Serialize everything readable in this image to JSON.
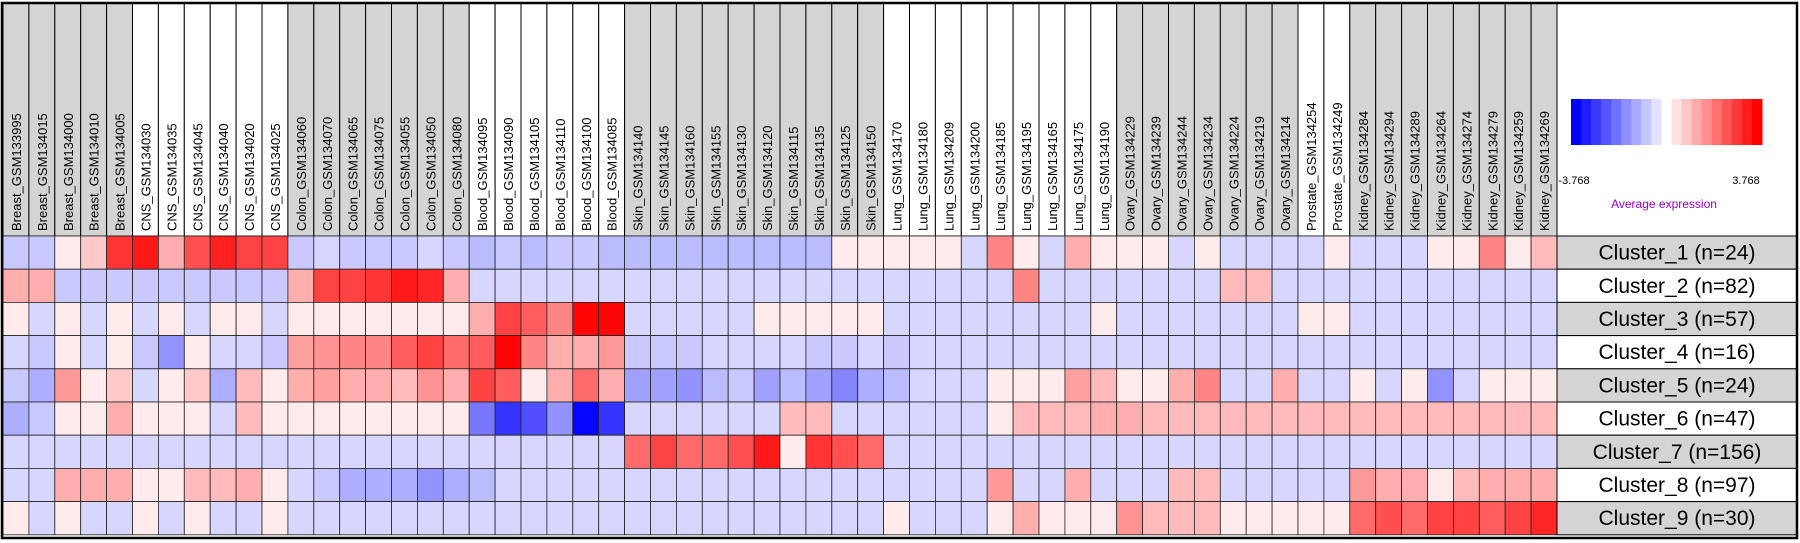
{
  "chart_data": {
    "type": "heatmap",
    "columns": [
      {
        "label": "Breast_GSM133995",
        "group": "Breast"
      },
      {
        "label": "Breast_GSM134015",
        "group": "Breast"
      },
      {
        "label": "Breast_GSM134000",
        "group": "Breast"
      },
      {
        "label": "Breast_GSM134010",
        "group": "Breast"
      },
      {
        "label": "Breast_GSM134005",
        "group": "Breast"
      },
      {
        "label": "CNS_GSM134030",
        "group": "CNS"
      },
      {
        "label": "CNS_GSM134035",
        "group": "CNS"
      },
      {
        "label": "CNS_GSM134045",
        "group": "CNS"
      },
      {
        "label": "CNS_GSM134040",
        "group": "CNS"
      },
      {
        "label": "CNS_GSM134020",
        "group": "CNS"
      },
      {
        "label": "CNS_GSM134025",
        "group": "CNS"
      },
      {
        "label": "Colon_GSM134060",
        "group": "Colon"
      },
      {
        "label": "Colon_GSM134070",
        "group": "Colon"
      },
      {
        "label": "Colon_GSM134065",
        "group": "Colon"
      },
      {
        "label": "Colon_GSM134075",
        "group": "Colon"
      },
      {
        "label": "Colon_GSM134055",
        "group": "Colon"
      },
      {
        "label": "Colon_GSM134050",
        "group": "Colon"
      },
      {
        "label": "Colon_GSM134080",
        "group": "Colon"
      },
      {
        "label": "Blood_GSM134095",
        "group": "Blood"
      },
      {
        "label": "Blood_GSM134090",
        "group": "Blood"
      },
      {
        "label": "Blood_GSM134105",
        "group": "Blood"
      },
      {
        "label": "Blood_GSM134110",
        "group": "Blood"
      },
      {
        "label": "Blood_GSM134100",
        "group": "Blood"
      },
      {
        "label": "Blood_GSM134085",
        "group": "Blood"
      },
      {
        "label": "Skin_GSM134140",
        "group": "Skin"
      },
      {
        "label": "Skin_GSM134145",
        "group": "Skin"
      },
      {
        "label": "Skin_GSM134160",
        "group": "Skin"
      },
      {
        "label": "Skin_GSM134155",
        "group": "Skin"
      },
      {
        "label": "Skin_GSM134130",
        "group": "Skin"
      },
      {
        "label": "Skin_GSM134120",
        "group": "Skin"
      },
      {
        "label": "Skin_GSM134115",
        "group": "Skin"
      },
      {
        "label": "Skin_GSM134135",
        "group": "Skin"
      },
      {
        "label": "Skin_GSM134125",
        "group": "Skin"
      },
      {
        "label": "Skin_GSM134150",
        "group": "Skin"
      },
      {
        "label": "Lung_GSM134170",
        "group": "Lung"
      },
      {
        "label": "Lung_GSM134180",
        "group": "Lung"
      },
      {
        "label": "Lung_GSM134209",
        "group": "Lung"
      },
      {
        "label": "Lung_GSM134200",
        "group": "Lung"
      },
      {
        "label": "Lung_GSM134185",
        "group": "Lung"
      },
      {
        "label": "Lung_GSM134195",
        "group": "Lung"
      },
      {
        "label": "Lung_GSM134165",
        "group": "Lung"
      },
      {
        "label": "Lung_GSM134175",
        "group": "Lung"
      },
      {
        "label": "Lung_GSM134190",
        "group": "Lung"
      },
      {
        "label": "Ovary_GSM134229",
        "group": "Ovary"
      },
      {
        "label": "Ovary_GSM134239",
        "group": "Ovary"
      },
      {
        "label": "Ovary_GSM134244",
        "group": "Ovary"
      },
      {
        "label": "Ovary_GSM134234",
        "group": "Ovary"
      },
      {
        "label": "Ovary_GSM134224",
        "group": "Ovary"
      },
      {
        "label": "Ovary_GSM134219",
        "group": "Ovary"
      },
      {
        "label": "Ovary_GSM134214",
        "group": "Ovary"
      },
      {
        "label": "Prostate_GSM134254",
        "group": "Prostate"
      },
      {
        "label": "Prostate_GSM134249",
        "group": "Prostate"
      },
      {
        "label": "Kidney_GSM134284",
        "group": "Kidney"
      },
      {
        "label": "Kidney_GSM134294",
        "group": "Kidney"
      },
      {
        "label": "Kidney_GSM134289",
        "group": "Kidney"
      },
      {
        "label": "Kidney_GSM134264",
        "group": "Kidney"
      },
      {
        "label": "Kidney_GSM134274",
        "group": "Kidney"
      },
      {
        "label": "Kidney_GSM134279",
        "group": "Kidney"
      },
      {
        "label": "Kidney_GSM134259",
        "group": "Kidney"
      },
      {
        "label": "Kidney_GSM134269",
        "group": "Kidney"
      }
    ],
    "rows": [
      "Cluster_1 (n=24)",
      "Cluster_2 (n=82)",
      "Cluster_3 (n=57)",
      "Cluster_4 (n=16)",
      "Cluster_5 (n=24)",
      "Cluster_6 (n=47)",
      "Cluster_7 (n=156)",
      "Cluster_8 (n=97)",
      "Cluster_9 (n=30)"
    ],
    "values": [
      [
        -0.8,
        -0.8,
        0.3,
        0.8,
        3.0,
        3.4,
        1.2,
        2.6,
        3.3,
        2.8,
        2.8,
        -0.8,
        -0.6,
        -0.8,
        -0.8,
        -0.8,
        -0.6,
        -0.8,
        -1.0,
        -0.8,
        -1.0,
        -0.8,
        -0.8,
        -1.0,
        -1.0,
        -1.0,
        -1.0,
        -1.0,
        -1.0,
        -1.0,
        -1.0,
        -1.0,
        0.3,
        0.3,
        0.3,
        0.3,
        0.3,
        -0.6,
        1.8,
        0.3,
        -0.6,
        1.2,
        0.3,
        0.3,
        0.3,
        -0.6,
        0.3,
        -0.6,
        -0.6,
        -0.6,
        -0.6,
        0.3,
        -0.6,
        -0.6,
        -0.6,
        0.3,
        0.3,
        1.8,
        0.3,
        1.0
      ],
      [
        1.2,
        1.2,
        -0.8,
        -0.8,
        -0.8,
        -0.8,
        -0.8,
        -0.8,
        -0.8,
        -0.8,
        -0.8,
        1.2,
        2.8,
        2.8,
        3.0,
        3.4,
        3.2,
        1.2,
        -0.6,
        -0.6,
        -0.6,
        -0.6,
        -0.6,
        -0.6,
        -0.6,
        -0.6,
        -0.6,
        -0.6,
        -0.6,
        -0.6,
        -0.6,
        -0.6,
        -0.6,
        -0.6,
        -0.6,
        -0.6,
        -0.6,
        -0.6,
        -0.6,
        1.8,
        -0.6,
        -0.6,
        -0.6,
        -0.6,
        -0.6,
        -0.6,
        -0.6,
        1.0,
        1.0,
        -0.6,
        -0.6,
        -0.6,
        -0.6,
        -0.6,
        -0.6,
        -0.6,
        -0.6,
        -0.6,
        -0.6,
        -0.6
      ],
      [
        0.3,
        -0.6,
        0.3,
        -0.6,
        0.3,
        -0.6,
        0.3,
        -0.6,
        0.3,
        0.3,
        -0.6,
        0.3,
        0.3,
        0.3,
        0.3,
        0.3,
        0.3,
        0.3,
        1.2,
        2.8,
        2.4,
        1.8,
        3.7,
        3.7,
        -0.6,
        -0.6,
        -0.6,
        -0.6,
        -0.6,
        0.3,
        0.3,
        0.3,
        0.3,
        0.3,
        -0.6,
        -0.6,
        -0.6,
        -0.6,
        -0.6,
        -0.6,
        -0.6,
        -0.6,
        0.3,
        -0.6,
        -0.6,
        -0.6,
        -0.6,
        -0.6,
        -0.6,
        -0.6,
        0.3,
        0.3,
        -0.6,
        -0.6,
        -0.6,
        -0.6,
        -0.6,
        -0.6,
        -0.6,
        -0.6
      ],
      [
        -0.6,
        -0.8,
        0.3,
        -0.6,
        0.3,
        -0.8,
        -1.6,
        0.3,
        -0.6,
        -0.6,
        -0.8,
        1.4,
        1.6,
        1.8,
        1.8,
        2.4,
        2.8,
        2.2,
        2.4,
        3.7,
        1.8,
        1.2,
        1.2,
        1.5,
        -0.8,
        -0.8,
        -0.8,
        -0.6,
        -0.6,
        -0.6,
        -0.6,
        -0.8,
        -0.8,
        -0.6,
        -0.8,
        -0.6,
        -0.6,
        -0.6,
        -0.6,
        -0.6,
        -0.6,
        -0.6,
        -0.6,
        -0.6,
        -0.6,
        -0.6,
        -0.6,
        -0.6,
        -0.6,
        -0.6,
        -0.6,
        -0.6,
        -0.6,
        -0.6,
        -0.6,
        -0.6,
        -0.6,
        -0.6,
        -0.6,
        -0.6
      ],
      [
        -0.8,
        -1.2,
        1.5,
        0.3,
        0.8,
        -0.6,
        0.3,
        0.8,
        -1.2,
        1.0,
        0.3,
        1.2,
        1.4,
        1.2,
        1.2,
        1.0,
        1.6,
        1.2,
        2.8,
        2.4,
        0.3,
        1.2,
        2.2,
        1.2,
        -1.4,
        -1.4,
        -1.6,
        -1.0,
        -0.8,
        -1.4,
        -1.0,
        -1.4,
        -1.8,
        -1.2,
        -1.0,
        -0.6,
        -0.6,
        -0.6,
        0.3,
        0.3,
        0.3,
        1.4,
        1.0,
        0.3,
        0.3,
        1.2,
        1.8,
        -0.6,
        -0.6,
        1.2,
        -0.6,
        -0.6,
        0.3,
        -0.6,
        0.3,
        -1.6,
        -0.6,
        0.3,
        0.3,
        0.3
      ],
      [
        -1.2,
        -0.8,
        0.3,
        0.3,
        1.2,
        0.3,
        0.3,
        0.3,
        -0.6,
        1.0,
        0.3,
        0.3,
        0.3,
        0.3,
        0.3,
        0.3,
        0.3,
        0.3,
        -2.0,
        -3.0,
        -2.6,
        -1.6,
        -3.7,
        -3.0,
        -0.6,
        -0.6,
        -0.6,
        -0.6,
        -0.6,
        -0.6,
        1.0,
        1.0,
        -0.6,
        -0.6,
        -0.6,
        -0.6,
        -0.6,
        -0.6,
        0.3,
        1.0,
        1.0,
        1.0,
        1.2,
        1.2,
        1.0,
        1.0,
        1.0,
        1.0,
        1.0,
        1.0,
        1.0,
        1.0,
        1.0,
        1.0,
        1.0,
        1.0,
        1.0,
        1.0,
        1.0,
        1.0
      ],
      [
        -0.6,
        -0.6,
        -0.6,
        -0.6,
        -0.6,
        -0.6,
        -0.6,
        -0.6,
        -0.6,
        -0.6,
        -0.6,
        -0.6,
        -0.6,
        -0.6,
        -0.6,
        -0.6,
        -0.6,
        -0.6,
        -0.6,
        -0.6,
        -0.6,
        -0.6,
        -0.6,
        -0.6,
        2.2,
        2.8,
        2.2,
        2.2,
        2.6,
        3.4,
        0.3,
        3.0,
        2.6,
        2.2,
        -0.6,
        -0.6,
        -0.6,
        -0.6,
        -0.6,
        -0.6,
        -0.6,
        -0.6,
        -0.6,
        -0.6,
        -0.6,
        -0.6,
        -0.6,
        -0.6,
        -0.6,
        -0.6,
        -0.6,
        -0.6,
        -0.6,
        -0.6,
        -0.6,
        -0.6,
        -0.6,
        -0.6,
        -0.6,
        -0.6
      ],
      [
        -0.6,
        -0.6,
        1.2,
        1.2,
        1.2,
        0.3,
        0.3,
        1.0,
        1.0,
        1.2,
        0.3,
        -0.6,
        -0.8,
        -1.2,
        -1.2,
        -1.2,
        -1.6,
        -1.2,
        -1.0,
        -0.6,
        -0.6,
        -0.6,
        -0.6,
        -0.6,
        -0.6,
        -0.6,
        -0.6,
        -0.6,
        -0.6,
        -0.6,
        -0.6,
        -0.6,
        -0.6,
        -0.6,
        -0.6,
        -0.6,
        -0.6,
        -0.6,
        1.5,
        -0.6,
        -0.6,
        1.2,
        -0.6,
        -0.6,
        -0.6,
        1.0,
        1.0,
        -0.6,
        -0.6,
        -0.6,
        -0.6,
        -0.6,
        1.5,
        1.2,
        1.2,
        0.3,
        1.0,
        1.2,
        1.2,
        1.2
      ],
      [
        0.3,
        -0.6,
        0.3,
        -0.6,
        -0.6,
        0.3,
        -0.6,
        0.3,
        -0.6,
        -0.6,
        0.3,
        -0.6,
        -0.6,
        -0.6,
        -0.6,
        -0.6,
        -0.6,
        -0.6,
        -0.6,
        -0.6,
        -0.6,
        -0.6,
        -0.6,
        -0.6,
        -0.6,
        -0.6,
        -0.6,
        -0.6,
        -0.6,
        -0.6,
        -0.6,
        -0.6,
        -0.6,
        -0.6,
        0.3,
        -0.6,
        -0.6,
        -0.6,
        0.3,
        1.2,
        0.3,
        0.3,
        0.3,
        1.6,
        1.0,
        1.0,
        1.0,
        0.3,
        0.3,
        0.3,
        0.3,
        0.3,
        2.2,
        2.6,
        2.2,
        2.8,
        2.8,
        2.4,
        2.8,
        3.2
      ]
    ],
    "color_scale": {
      "min": -3.768,
      "max": 3.768,
      "min_label": "-3.768",
      "max_label": "3.768",
      "low_color": "#0000ff",
      "mid_color": "#ffffff",
      "high_color": "#ff0000",
      "legend_title": "Average expression",
      "legend_title_color": "#9900cc",
      "legend_placement": "top-right"
    },
    "header_shading": {
      "Breast": "#d4d4d4",
      "CNS": "#ffffff",
      "Colon": "#d4d4d4",
      "Blood": "#ffffff",
      "Skin": "#d4d4d4",
      "Lung": "#ffffff",
      "Ovary": "#d4d4d4",
      "Prostate": "#ffffff",
      "Kidney": "#d4d4d4"
    },
    "row_label_shading": [
      "#d4d4d4",
      "#ffffff",
      "#d4d4d4",
      "#ffffff",
      "#d4d4d4",
      "#ffffff",
      "#d4d4d4",
      "#ffffff",
      "#d4d4d4"
    ]
  }
}
